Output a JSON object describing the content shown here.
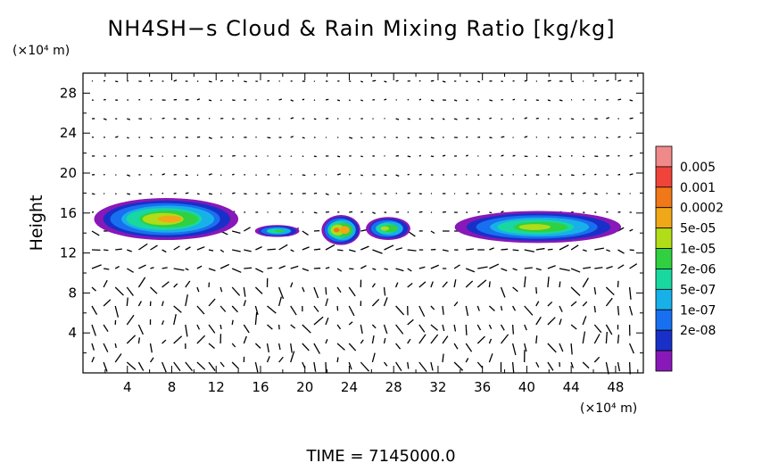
{
  "chart_data": {
    "type": "heatmap",
    "title": "NH4SH−s Cloud & Rain Mixing Ratio [kg/kg]",
    "y_unit_label": "(×10⁴ m)",
    "x_unit_label": "(×10⁴ m)",
    "ylabel": "Height",
    "xlabel": "",
    "footer": "TIME  =  7145000.0",
    "x_ticks": [
      "4",
      "8",
      "12",
      "16",
      "20",
      "24",
      "28",
      "32",
      "36",
      "40",
      "44",
      "48"
    ],
    "y_ticks": [
      "4",
      "8",
      "12",
      "16",
      "20",
      "24",
      "28"
    ],
    "xlim": [
      0,
      50.5
    ],
    "ylim": [
      0,
      30
    ],
    "grid": false,
    "legend": {
      "placement": "right",
      "levels": [
        "0.005",
        "0.001",
        "0.0002",
        "5e-05",
        "1e-05",
        "2e-06",
        "5e-07",
        "1e-07",
        "2e-08"
      ],
      "colors": [
        "#f08a8a",
        "#f0433a",
        "#f07818",
        "#f0a818",
        "#b0dc18",
        "#30d040",
        "#18d8a0",
        "#18b0e8",
        "#1870f0",
        "#1830c8",
        "#8818b8"
      ]
    },
    "cloud_regions": [
      {
        "x": [
          1.0,
          14.0
        ],
        "y": [
          13.3,
          17.5
        ],
        "max_level": "5e-05"
      },
      {
        "x": [
          15.5,
          19.5
        ],
        "y": [
          13.6,
          14.8
        ],
        "max_level": "2e-06"
      },
      {
        "x": [
          21.5,
          25.0
        ],
        "y": [
          12.8,
          15.8
        ],
        "max_level": "0.0002"
      },
      {
        "x": [
          25.5,
          29.5
        ],
        "y": [
          13.3,
          15.6
        ],
        "max_level": "1e-05"
      },
      {
        "x": [
          33.5,
          48.5
        ],
        "y": [
          13.0,
          16.2
        ],
        "max_level": "1e-05"
      }
    ]
  }
}
